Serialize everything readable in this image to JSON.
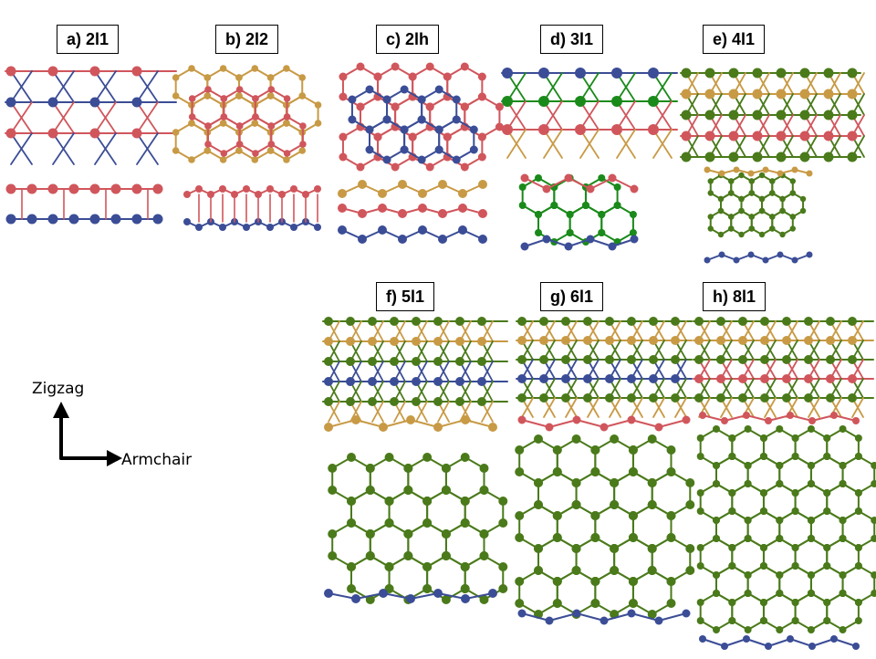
{
  "panels": [
    {
      "label": "a) 2l1"
    },
    {
      "label": "b) 2l2"
    },
    {
      "label": "c) 2lh"
    },
    {
      "label": "d) 3l1"
    },
    {
      "label": "e) 4l1"
    },
    {
      "label": "f) 5l1"
    },
    {
      "label": "g) 6l1"
    },
    {
      "label": "h) 8l1"
    }
  ],
  "axes": {
    "vertical": "Zigzag",
    "horizontal": "Armchair"
  },
  "colors": {
    "red": "#d0565c",
    "blue": "#3b4d96",
    "gold": "#c89a45",
    "green": "#4a7a1a",
    "dgreen": "#1a8a1a"
  }
}
